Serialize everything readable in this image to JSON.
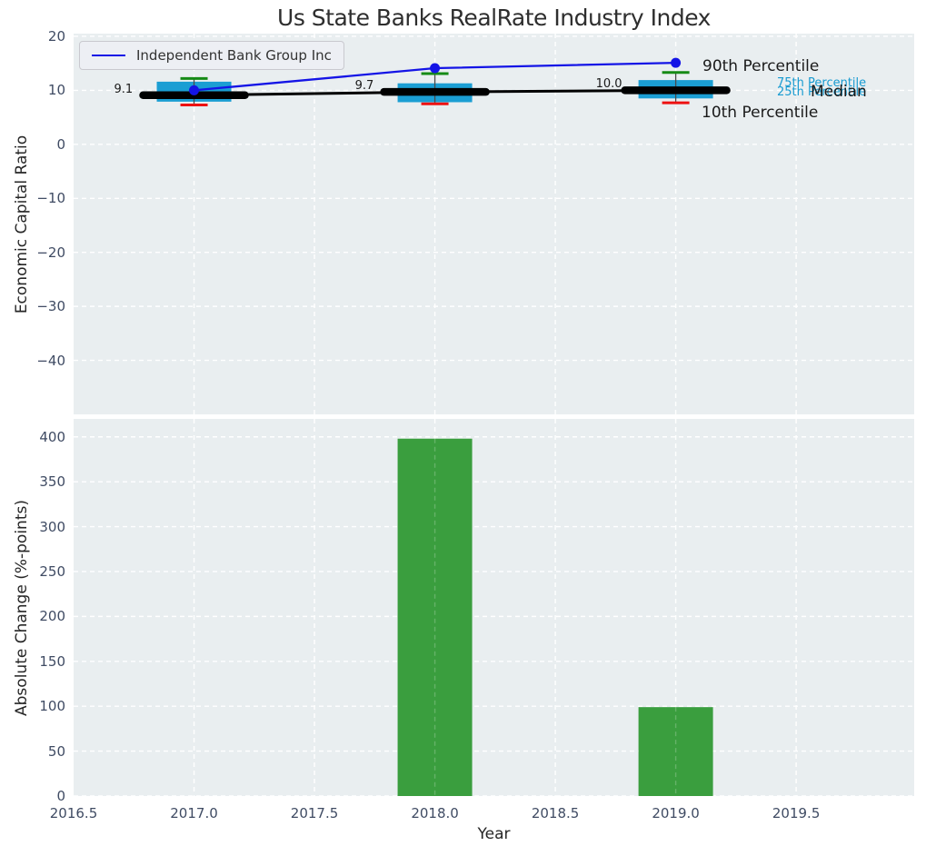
{
  "title": "Us State Banks RealRate Industry Index",
  "legend": {
    "items": [
      {
        "label": "Independent Bank Group Inc",
        "color": "#1414e6"
      }
    ]
  },
  "annotations": {
    "p90": "90th Percentile",
    "p75": "75th Percentile",
    "p25": "25th Percentile",
    "median": "Median",
    "p10": "10th Percentile"
  },
  "colors": {
    "box_fill": "#1b9ed3",
    "p90_cap": "#158a15",
    "p10_cap": "#ee1111",
    "median_line": "#000000",
    "company_line": "#1414e6",
    "bar_fill": "#3a9e3e",
    "axes_background": "#e9eef0",
    "gridline": "#ffffff",
    "tick_text": "#3f4b63"
  },
  "chart_data": [
    {
      "type": "box+line",
      "ylabel": "Economic Capital Ratio",
      "ylim": [
        -50,
        20.5
      ],
      "xlim": [
        2016.5,
        2019.99
      ],
      "yticks": [
        20,
        10,
        0,
        -10,
        -20,
        -30,
        -40
      ],
      "grid": true,
      "legend_position": "upper left",
      "years": [
        2017,
        2018,
        2019
      ],
      "box": {
        "p10": [
          7.3,
          7.5,
          7.7
        ],
        "p25": [
          7.9,
          7.8,
          8.5
        ],
        "median": [
          9.1,
          9.7,
          10.0
        ],
        "p75": [
          11.6,
          11.3,
          11.9
        ],
        "p90": [
          12.2,
          13.1,
          13.3
        ]
      },
      "median_labels": [
        "9.1",
        "9.7",
        "10.0"
      ],
      "series": [
        {
          "name": "Independent Bank Group Inc",
          "values": [
            10.0,
            14.1,
            15.1
          ]
        }
      ]
    },
    {
      "type": "bar",
      "ylabel": "Absolute Change (%-points)",
      "xlabel": "Year",
      "ylim": [
        0,
        420
      ],
      "xlim": [
        2016.5,
        2019.99
      ],
      "yticks": [
        400,
        350,
        300,
        250,
        200,
        150,
        100,
        50,
        0
      ],
      "xticks": [
        2016.5,
        2017.0,
        2017.5,
        2018.0,
        2018.5,
        2019.0,
        2019.5
      ],
      "grid": true,
      "x": [
        2018,
        2019
      ],
      "values": [
        398,
        99
      ]
    }
  ]
}
